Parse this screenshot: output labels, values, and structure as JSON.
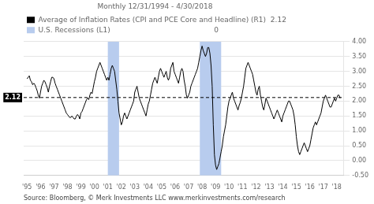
{
  "chart_data": {
    "type": "line",
    "title": "Monthly 12/31/1994 - 4/30/2018",
    "source": "Source: Bloomberg, © Merk Investments LLC www.merkinvestments.com/research",
    "legend": "top left",
    "grid": "y",
    "x": [
      1995,
      1995.083333,
      1995.166667,
      1995.25,
      1995.333333,
      1995.416667,
      1995.5,
      1995.583333,
      1995.666667,
      1995.75,
      1995.833333,
      1995.916667,
      1996,
      1996.083333,
      1996.166667,
      1996.25,
      1996.333333,
      1996.416667,
      1996.5,
      1996.583333,
      1996.666667,
      1996.75,
      1996.833333,
      1996.916667,
      1997,
      1997.083333,
      1997.166667,
      1997.25,
      1997.333333,
      1997.416667,
      1997.5,
      1997.583333,
      1997.666667,
      1997.75,
      1997.833333,
      1997.916667,
      1998,
      1998.083333,
      1998.166667,
      1998.25,
      1998.333333,
      1998.416667,
      1998.5,
      1998.583333,
      1998.666667,
      1998.75,
      1998.833333,
      1998.916667,
      1999,
      1999.083333,
      1999.166667,
      1999.25,
      1999.333333,
      1999.416667,
      1999.5,
      1999.583333,
      1999.666667,
      1999.75,
      1999.833333,
      1999.916667,
      2000,
      2000.083333,
      2000.166667,
      2000.25,
      2000.333333,
      2000.416667,
      2000.5,
      2000.583333,
      2000.666667,
      2000.75,
      2000.833333,
      2000.916667,
      2001,
      2001.083333,
      2001.166667,
      2001.25,
      2001.333333,
      2001.416667,
      2001.5,
      2001.583333,
      2001.666667,
      2001.75,
      2001.833333,
      2001.916667,
      2002,
      2002.083333,
      2002.166667,
      2002.25,
      2002.333333,
      2002.416667,
      2002.5,
      2002.583333,
      2002.666667,
      2002.75,
      2002.833333,
      2002.916667,
      2003,
      2003.083333,
      2003.166667,
      2003.25,
      2003.333333,
      2003.416667,
      2003.5,
      2003.583333,
      2003.666667,
      2003.75,
      2003.833333,
      2003.916667,
      2004,
      2004.083333,
      2004.166667,
      2004.25,
      2004.333333,
      2004.416667,
      2004.5,
      2004.583333,
      2004.666667,
      2004.75,
      2004.833333,
      2004.916667,
      2005,
      2005.083333,
      2005.166667,
      2005.25,
      2005.333333,
      2005.416667,
      2005.5,
      2005.583333,
      2005.666667,
      2005.75,
      2005.833333,
      2005.916667,
      2006,
      2006.083333,
      2006.166667,
      2006.25,
      2006.333333,
      2006.416667,
      2006.5,
      2006.583333,
      2006.666667,
      2006.75,
      2006.833333,
      2006.916667,
      2007,
      2007.083333,
      2007.166667,
      2007.25,
      2007.333333,
      2007.416667,
      2007.5,
      2007.583333,
      2007.666667,
      2007.75,
      2007.833333,
      2007.916667,
      2008,
      2008.083333,
      2008.166667,
      2008.25,
      2008.333333,
      2008.416667,
      2008.5,
      2008.583333,
      2008.666667,
      2008.75,
      2008.833333,
      2008.916667,
      2009,
      2009.083333,
      2009.166667,
      2009.25,
      2009.333333,
      2009.416667,
      2009.5,
      2009.583333,
      2009.666667,
      2009.75,
      2009.833333,
      2009.916667,
      2010,
      2010.083333,
      2010.166667,
      2010.25,
      2010.333333,
      2010.416667,
      2010.5,
      2010.583333,
      2010.666667,
      2010.75,
      2010.833333,
      2010.916667,
      2011,
      2011.083333,
      2011.166667,
      2011.25,
      2011.333333,
      2011.416667,
      2011.5,
      2011.583333,
      2011.666667,
      2011.75,
      2011.833333,
      2011.916667,
      2012,
      2012.083333,
      2012.166667,
      2012.25,
      2012.333333,
      2012.416667,
      2012.5,
      2012.583333,
      2012.666667,
      2012.75,
      2012.833333,
      2012.916667,
      2013,
      2013.083333,
      2013.166667,
      2013.25,
      2013.333333,
      2013.416667,
      2013.5,
      2013.583333,
      2013.666667,
      2013.75,
      2013.833333,
      2013.916667,
      2014,
      2014.083333,
      2014.166667,
      2014.25,
      2014.333333,
      2014.416667,
      2014.5,
      2014.583333,
      2014.666667,
      2014.75,
      2014.833333,
      2014.916667,
      2015,
      2015.083333,
      2015.166667,
      2015.25,
      2015.333333,
      2015.416667,
      2015.5,
      2015.583333,
      2015.666667,
      2015.75,
      2015.833333,
      2015.916667,
      2016,
      2016.083333,
      2016.166667,
      2016.25,
      2016.333333,
      2016.416667,
      2016.5,
      2016.583333,
      2016.666667,
      2016.75,
      2016.833333,
      2016.916667,
      2017,
      2017.083333,
      2017.166667,
      2017.25,
      2017.333333,
      2017.416667,
      2017.5,
      2017.583333,
      2017.666667,
      2017.75,
      2017.833333,
      2017.916667,
      2018,
      2018.083333,
      2018.166667,
      2018.25
    ],
    "series": [
      {
        "name": "Average of Inflation Rates (CPI and PCE Core and Headline) (R1)  2.12",
        "color": "#000000",
        "values": [
          2.75,
          2.8,
          2.85,
          2.7,
          2.65,
          2.55,
          2.6,
          2.55,
          2.45,
          2.35,
          2.2,
          2.1,
          2.3,
          2.5,
          2.6,
          2.7,
          2.65,
          2.55,
          2.45,
          2.3,
          2.5,
          2.65,
          2.8,
          2.8,
          2.75,
          2.6,
          2.5,
          2.4,
          2.3,
          2.2,
          2.1,
          2.0,
          1.9,
          1.8,
          1.7,
          1.6,
          1.55,
          1.5,
          1.45,
          1.45,
          1.5,
          1.45,
          1.4,
          1.4,
          1.5,
          1.55,
          1.5,
          1.4,
          1.6,
          1.65,
          1.75,
          1.85,
          1.95,
          2.05,
          2.1,
          2.05,
          2.2,
          2.3,
          2.25,
          2.45,
          2.65,
          2.8,
          3.0,
          3.1,
          3.2,
          3.3,
          3.2,
          3.1,
          3.0,
          2.9,
          2.8,
          2.7,
          2.8,
          2.7,
          2.9,
          3.1,
          3.2,
          3.1,
          3.0,
          2.7,
          2.4,
          2.0,
          1.6,
          1.4,
          1.2,
          1.3,
          1.5,
          1.6,
          1.5,
          1.4,
          1.5,
          1.6,
          1.7,
          1.8,
          1.9,
          2.0,
          2.3,
          2.4,
          2.5,
          2.3,
          2.1,
          2.0,
          1.9,
          1.8,
          1.7,
          1.6,
          1.5,
          1.7,
          1.9,
          2.0,
          2.2,
          2.4,
          2.6,
          2.7,
          2.8,
          2.7,
          2.6,
          2.8,
          3.0,
          3.1,
          3.0,
          2.9,
          2.8,
          2.9,
          3.0,
          2.8,
          2.7,
          2.8,
          3.1,
          3.2,
          3.3,
          3.0,
          2.9,
          2.8,
          2.7,
          2.6,
          2.8,
          3.0,
          3.1,
          3.0,
          2.7,
          2.5,
          2.2,
          2.1,
          2.2,
          2.3,
          2.5,
          2.6,
          2.7,
          2.8,
          2.9,
          3.0,
          3.1,
          3.3,
          3.5,
          3.7,
          3.85,
          3.7,
          3.6,
          3.5,
          3.6,
          3.8,
          3.8,
          3.6,
          3.2,
          2.5,
          1.2,
          0.2,
          -0.15,
          -0.3,
          -0.2,
          -0.1,
          0.1,
          0.3,
          0.5,
          0.8,
          1.0,
          1.2,
          1.5,
          1.8,
          2.0,
          2.1,
          2.2,
          2.3,
          2.1,
          2.0,
          1.9,
          1.8,
          1.7,
          1.85,
          1.95,
          2.1,
          2.3,
          2.5,
          2.8,
          3.1,
          3.2,
          3.3,
          3.2,
          3.1,
          3.0,
          2.9,
          2.7,
          2.5,
          2.3,
          2.2,
          2.4,
          2.5,
          2.2,
          2.0,
          1.8,
          1.7,
          1.9,
          2.1,
          2.0,
          1.9,
          1.8,
          1.7,
          1.6,
          1.5,
          1.4,
          1.5,
          1.6,
          1.7,
          1.6,
          1.5,
          1.4,
          1.3,
          1.5,
          1.6,
          1.7,
          1.8,
          1.9,
          2.0,
          2.0,
          1.9,
          1.8,
          1.7,
          1.5,
          1.2,
          0.8,
          0.5,
          0.3,
          0.2,
          0.3,
          0.4,
          0.5,
          0.6,
          0.5,
          0.4,
          0.3,
          0.4,
          0.5,
          0.7,
          0.9,
          1.1,
          1.2,
          1.3,
          1.2,
          1.3,
          1.4,
          1.5,
          1.6,
          1.8,
          2.0,
          2.1,
          2.2,
          2.1,
          2.0,
          1.9,
          1.8,
          1.8,
          1.9,
          2.0,
          2.1,
          2.0,
          2.1,
          2.2,
          2.2,
          2.1
        ]
      }
    ],
    "bands": {
      "name": "U.S. Recessions (L1)                                              0",
      "color": "#b8ccee",
      "spans": [
        [
          2001.0,
          2001.833
        ],
        [
          2007.833,
          2009.417
        ]
      ]
    },
    "reference_lines": [
      {
        "y": 2.12,
        "line_style": "dashed",
        "color": "#000000"
      }
    ],
    "xlim": [
      1994.75,
      2018.5
    ],
    "xticks": [
      {
        "value": 1995,
        "label": "'95"
      },
      {
        "value": 1996,
        "label": "'96"
      },
      {
        "value": 1997,
        "label": "'97"
      },
      {
        "value": 1998,
        "label": "'98"
      },
      {
        "value": 1999,
        "label": "'99"
      },
      {
        "value": 2000,
        "label": "'00"
      },
      {
        "value": 2001,
        "label": "'01"
      },
      {
        "value": 2002,
        "label": "'02"
      },
      {
        "value": 2003,
        "label": "'03"
      },
      {
        "value": 2004,
        "label": "'04"
      },
      {
        "value": 2005,
        "label": "'05"
      },
      {
        "value": 2006,
        "label": "'06"
      },
      {
        "value": 2007,
        "label": "'07"
      },
      {
        "value": 2008,
        "label": "'08"
      },
      {
        "value": 2009,
        "label": "'09"
      },
      {
        "value": 2010,
        "label": "'10"
      },
      {
        "value": 2011,
        "label": "'11"
      },
      {
        "value": 2012,
        "label": "'12"
      },
      {
        "value": 2013,
        "label": "'13"
      },
      {
        "value": 2014,
        "label": "'14"
      },
      {
        "value": 2015,
        "label": "'15"
      },
      {
        "value": 2016,
        "label": "'16"
      },
      {
        "value": 2017,
        "label": "'17"
      },
      {
        "value": 2018,
        "label": "'18"
      }
    ],
    "ylim": [
      -0.5,
      4.0
    ],
    "yticks": [
      {
        "value": -0.5,
        "label": "-0.50"
      },
      {
        "value": 0,
        "label": "0.00"
      },
      {
        "value": 0.5,
        "label": "0.50"
      },
      {
        "value": 1,
        "label": "1.00"
      },
      {
        "value": 1.5,
        "label": "1.50"
      },
      {
        "value": 2,
        "label": "2.00"
      },
      {
        "value": 2.5,
        "label": "2.50"
      },
      {
        "value": 3,
        "label": "3.00"
      },
      {
        "value": 3.5,
        "label": "3.50"
      },
      {
        "value": 4,
        "label": "4.00"
      }
    ]
  }
}
